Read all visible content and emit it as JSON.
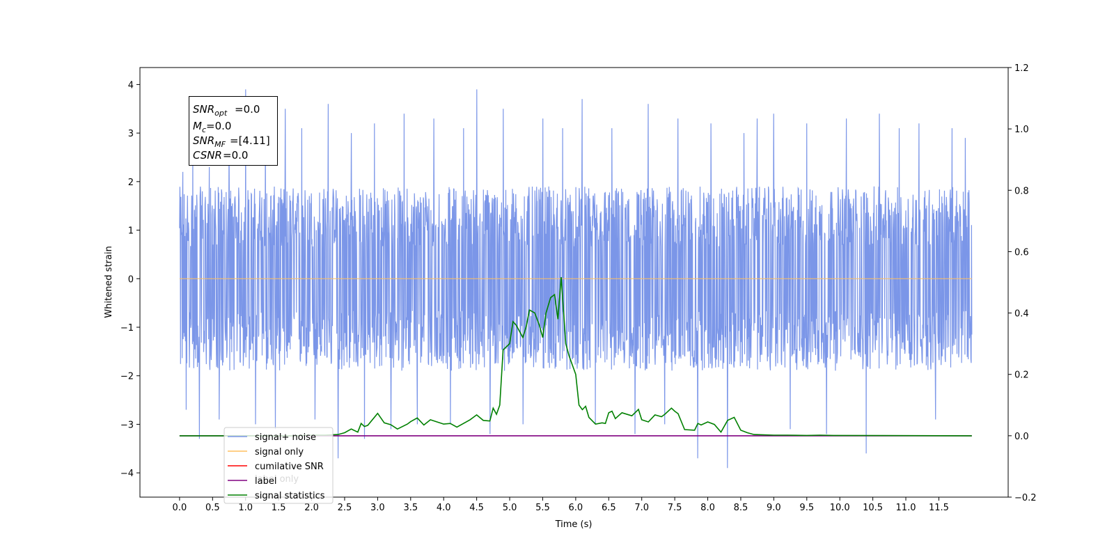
{
  "chart_data": {
    "type": "line",
    "xlabel": "Time (s)",
    "ylabel": "Whitened strain",
    "xlim": [
      -0.6,
      12.55
    ],
    "ylim_left": [
      -4.5,
      4.35
    ],
    "ylim_right": [
      -0.2,
      1.2
    ],
    "x_ticks": [
      "0.0",
      "0.5",
      "1.0",
      "1.5",
      "2.0",
      "2.5",
      "3.0",
      "3.5",
      "4.0",
      "4.5",
      "5.0",
      "5.5",
      "6.0",
      "6.5",
      "7.0",
      "7.5",
      "8.0",
      "8.5",
      "9.0",
      "9.5",
      "10.0",
      "10.5",
      "11.0",
      "11.5"
    ],
    "y_ticks_left": [
      "−4",
      "−3",
      "−2",
      "−1",
      "0",
      "1",
      "2",
      "3",
      "4"
    ],
    "y_ticks_right": [
      "−0.2",
      "0.0",
      "0.2",
      "0.4",
      "0.6",
      "0.8",
      "1.0",
      "1.2"
    ],
    "annotation": {
      "snr_opt": "=0.0",
      "mc": "=0.0",
      "snr_mf": "=[4.11]",
      "csnr": "=0.0"
    },
    "legend_position": "lower-left",
    "legend": [
      {
        "label": "signal+ noise",
        "color": "#7b96e8"
      },
      {
        "label": "signal only",
        "color": "#ffbf5f"
      },
      {
        "label": "cumilative SNR",
        "color": "#ff0000"
      },
      {
        "label": "label",
        "color": "#800080"
      },
      {
        "label": "signal statistics",
        "color": "#008000"
      }
    ],
    "legend_occluded_text": "label only",
    "series": [
      {
        "name": "signal+ noise",
        "axis": "left",
        "color": "#7b96e8",
        "x_range": [
          0.0,
          12.0
        ],
        "center": 0.0,
        "typical_range": [
          -1.9,
          1.9
        ],
        "spike_x": [
          0.05,
          0.1,
          0.2,
          0.3,
          0.45,
          0.6,
          0.75,
          1.0,
          1.15,
          1.3,
          1.45,
          1.6,
          1.85,
          2.05,
          2.25,
          2.4,
          2.6,
          2.8,
          2.95,
          3.2,
          3.4,
          3.6,
          3.85,
          4.1,
          4.3,
          4.5,
          4.7,
          4.9,
          5.2,
          5.5,
          5.8,
          6.1,
          6.3,
          6.55,
          6.9,
          7.1,
          7.35,
          7.55,
          7.85,
          8.05,
          8.3,
          8.55,
          8.75,
          9.0,
          9.25,
          9.5,
          9.8,
          10.1,
          10.4,
          10.6,
          10.9,
          11.2,
          11.45,
          11.7,
          11.9
        ],
        "spike_y": [
          2.2,
          -2.7,
          2.8,
          -3.3,
          2.3,
          -2.9,
          2.9,
          3.9,
          -3.0,
          3.3,
          -3.1,
          3.5,
          3.1,
          -2.9,
          3.6,
          -3.7,
          3.0,
          -3.3,
          3.2,
          -3.1,
          3.4,
          -3.0,
          3.3,
          -3.0,
          3.1,
          3.9,
          -3.2,
          3.5,
          -3.0,
          3.3,
          3.1,
          3.7,
          -3.0,
          3.1,
          -3.2,
          3.6,
          -3.0,
          3.3,
          -3.7,
          3.2,
          -3.9,
          3.0,
          3.3,
          3.4,
          -3.1,
          3.2,
          -3.2,
          3.3,
          -3.6,
          3.4,
          3.1,
          3.2,
          -2.9,
          3.1,
          2.9
        ]
      },
      {
        "name": "signal only",
        "axis": "left",
        "color": "#ffbf5f",
        "x": [
          0.0,
          12.0
        ],
        "y": [
          0.0,
          0.0
        ]
      },
      {
        "name": "label",
        "axis": "right",
        "color": "#800080",
        "x": [
          0.0,
          12.0
        ],
        "y": [
          0.0,
          0.0
        ]
      },
      {
        "name": "signal statistics",
        "axis": "right",
        "color": "#008000",
        "x": [
          0.0,
          1.7,
          2.0,
          2.2,
          2.4,
          2.5,
          2.6,
          2.7,
          2.75,
          2.8,
          2.85,
          3.0,
          3.1,
          3.2,
          3.3,
          3.45,
          3.5,
          3.6,
          3.7,
          3.8,
          3.9,
          4.0,
          4.1,
          4.2,
          4.4,
          4.5,
          4.6,
          4.7,
          4.75,
          4.8,
          4.85,
          4.9,
          5.0,
          5.05,
          5.1,
          5.2,
          5.25,
          5.3,
          5.38,
          5.45,
          5.5,
          5.55,
          5.62,
          5.68,
          5.73,
          5.78,
          5.85,
          5.9,
          6.0,
          6.05,
          6.1,
          6.15,
          6.2,
          6.3,
          6.4,
          6.45,
          6.5,
          6.55,
          6.6,
          6.7,
          6.85,
          6.95,
          7.0,
          7.1,
          7.2,
          7.3,
          7.35,
          7.45,
          7.5,
          7.55,
          7.65,
          7.8,
          7.85,
          7.9,
          8.0,
          8.1,
          8.2,
          8.3,
          8.4,
          8.5,
          8.6,
          8.7,
          9.0,
          9.2,
          9.5,
          9.7,
          9.9,
          12.0
        ],
        "y": [
          0.0,
          0.0,
          0.002,
          0.002,
          0.004,
          0.01,
          0.022,
          0.012,
          0.04,
          0.03,
          0.034,
          0.073,
          0.042,
          0.036,
          0.022,
          0.038,
          0.046,
          0.058,
          0.035,
          0.052,
          0.045,
          0.038,
          0.04,
          0.028,
          0.052,
          0.068,
          0.05,
          0.048,
          0.09,
          0.07,
          0.1,
          0.28,
          0.3,
          0.372,
          0.36,
          0.32,
          0.355,
          0.41,
          0.4,
          0.36,
          0.32,
          0.4,
          0.45,
          0.46,
          0.38,
          0.517,
          0.3,
          0.26,
          0.2,
          0.1,
          0.085,
          0.096,
          0.06,
          0.038,
          0.042,
          0.04,
          0.075,
          0.08,
          0.056,
          0.075,
          0.065,
          0.086,
          0.052,
          0.045,
          0.068,
          0.062,
          0.07,
          0.09,
          0.08,
          0.072,
          0.02,
          0.018,
          0.04,
          0.035,
          0.045,
          0.037,
          0.012,
          0.05,
          0.06,
          0.018,
          0.01,
          0.004,
          0.002,
          0.002,
          0.001,
          0.002,
          0.001,
          0.0
        ]
      }
    ]
  }
}
